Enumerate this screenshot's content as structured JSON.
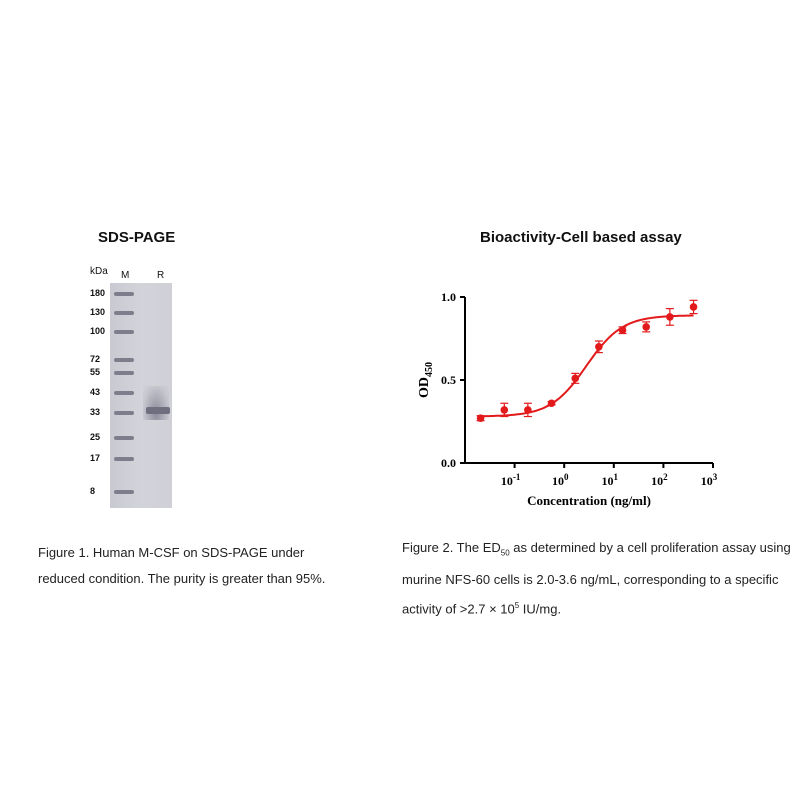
{
  "figure1": {
    "title": "SDS-PAGE",
    "unit_label": "kDa",
    "lanes": [
      "M",
      "R"
    ],
    "markers": [
      "180",
      "130",
      "100",
      "72",
      "55",
      "43",
      "33",
      "25",
      "17",
      "8"
    ],
    "caption_lines": [
      "Figure 1. Human M-CSF on SDS-PAGE under",
      "reduced condition. The purity is greater than 95%."
    ]
  },
  "figure2": {
    "caption": {
      "l1a": "Figure 2. The ED",
      "l1sub": "50",
      "l1b": " as determined by a cell proliferation assay using",
      "l2": "murine NFS-60 cells is 2.0-3.6 ng/mL, corresponding to a specific",
      "l3a": "activity of >2.7 × 10",
      "l3sup": "5",
      "l3b": " IU/mg."
    }
  },
  "chart_data": {
    "type": "scatter",
    "title": "Bioactivity-Cell based assay",
    "xlabel": "Concentration (ng/ml)",
    "ylabel": "OD",
    "ylabel_sub": "450",
    "xscale": "log",
    "xlim": [
      0.01,
      1000
    ],
    "ylim": [
      0,
      1.0
    ],
    "xticks": [
      {
        "base": "10",
        "exp": "-1"
      },
      {
        "base": "10",
        "exp": "0"
      },
      {
        "base": "10",
        "exp": "1"
      },
      {
        "base": "10",
        "exp": "2"
      },
      {
        "base": "10",
        "exp": "3"
      }
    ],
    "yticks": [
      "0.0",
      "0.5",
      "1.0"
    ],
    "color": "#e31a1c",
    "points": [
      {
        "x": 0.0206,
        "y": 0.27,
        "err": 0.015
      },
      {
        "x": 0.062,
        "y": 0.32,
        "err": 0.04
      },
      {
        "x": 0.185,
        "y": 0.32,
        "err": 0.04
      },
      {
        "x": 0.556,
        "y": 0.36,
        "err": 0.01
      },
      {
        "x": 1.67,
        "y": 0.51,
        "err": 0.03
      },
      {
        "x": 5,
        "y": 0.7,
        "err": 0.035
      },
      {
        "x": 15,
        "y": 0.8,
        "err": 0.02
      },
      {
        "x": 45,
        "y": 0.82,
        "err": 0.03
      },
      {
        "x": 135,
        "y": 0.88,
        "err": 0.05
      },
      {
        "x": 405,
        "y": 0.94,
        "err": 0.04
      }
    ],
    "fit": {
      "model": "4PL",
      "bottom": 0.28,
      "top": 0.89,
      "ec50": 2.8,
      "hill": 1.2
    },
    "grid": false
  }
}
